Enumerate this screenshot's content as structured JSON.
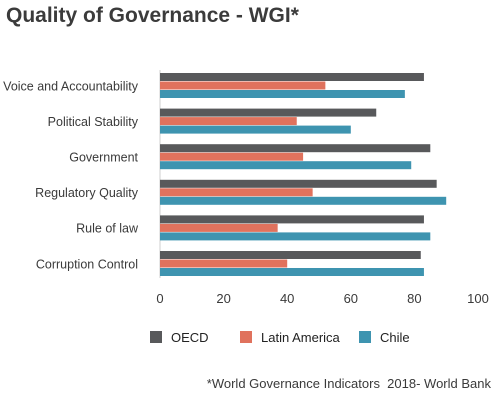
{
  "chart_data": {
    "type": "bar",
    "orientation": "horizontal",
    "title": "Quality of Governance - WGI*",
    "categories": [
      "Voice and Accountability",
      "Political Stability",
      "Government",
      "Regulatory Quality",
      "Rule of law",
      "Corruption Control"
    ],
    "series": [
      {
        "name": "OECD",
        "color": "#58595b",
        "values": [
          83,
          68,
          85,
          87,
          83,
          82
        ]
      },
      {
        "name": "Latin America",
        "color": "#e0725d",
        "values": [
          52,
          43,
          45,
          48,
          37,
          40
        ]
      },
      {
        "name": "Chile",
        "color": "#3e94b0",
        "values": [
          77,
          60,
          79,
          90,
          85,
          83
        ]
      }
    ],
    "xlim": [
      0,
      100
    ],
    "xticks": [
      "0",
      "20",
      "40",
      "60",
      "80",
      "100"
    ],
    "legend_position": "bottom",
    "gridlines": false
  },
  "footnote": "*World Governance Indicators  2018- World Bank"
}
